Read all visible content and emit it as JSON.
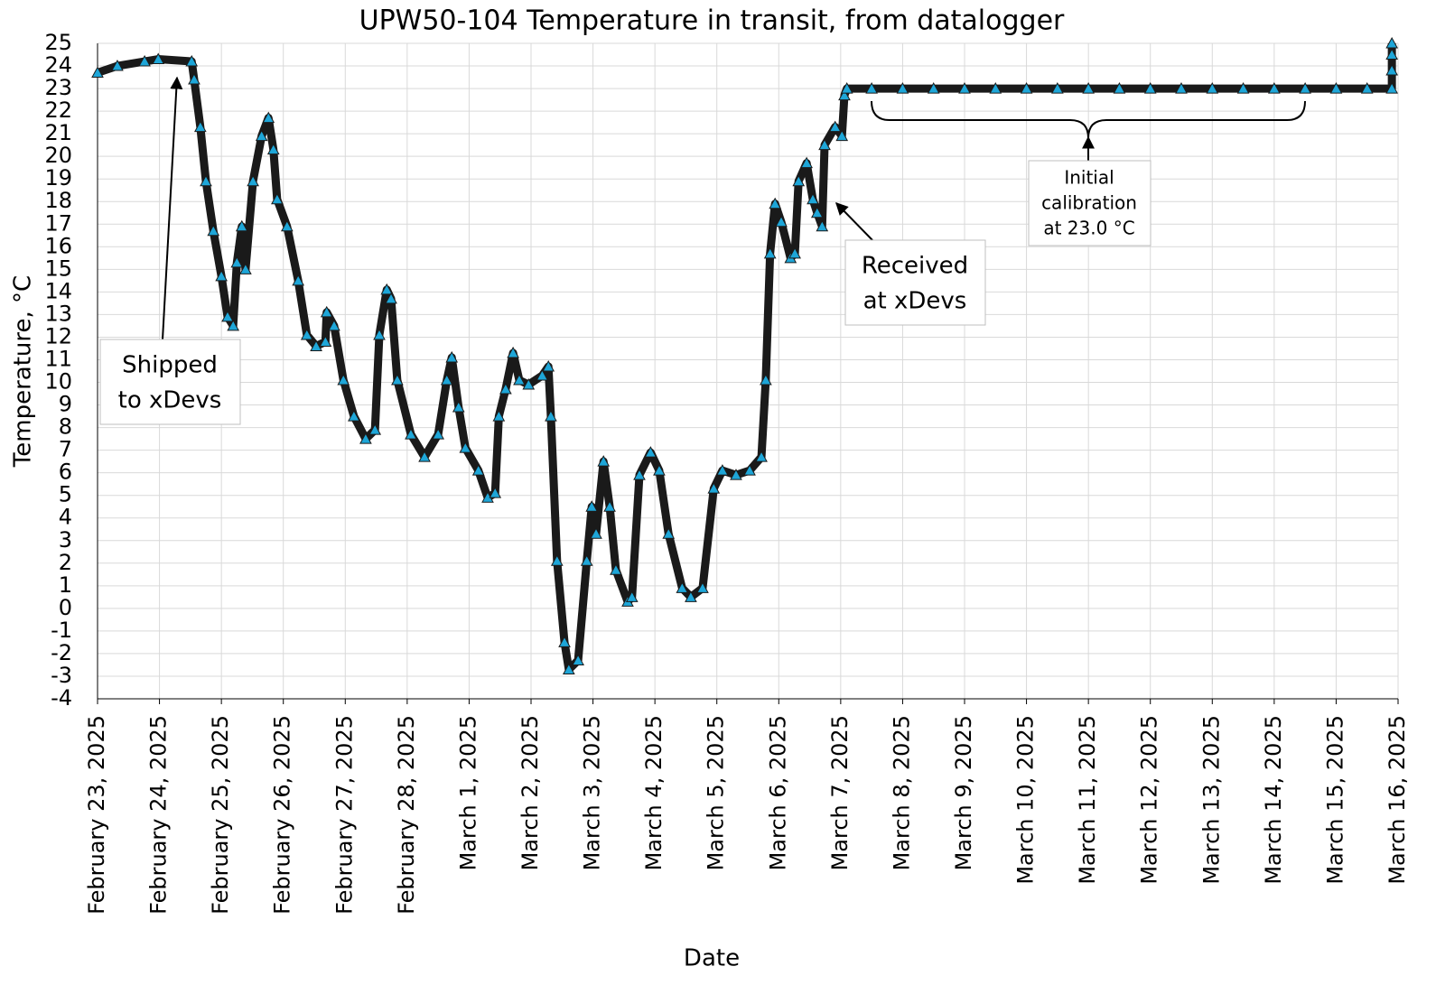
{
  "chart_data": {
    "type": "scatter",
    "title": "UPW50-104 Temperature in transit, from datalogger",
    "x_label": "Date",
    "y_label": "Temperature, °C",
    "grid": true,
    "xlim": [
      0,
      21
    ],
    "ylim": [
      -4,
      25
    ],
    "xticks": [
      {
        "value": 0,
        "label": "February 23, 2025"
      },
      {
        "value": 1,
        "label": "February 24, 2025"
      },
      {
        "value": 2,
        "label": "February 25, 2025"
      },
      {
        "value": 3,
        "label": "February 26, 2025"
      },
      {
        "value": 4,
        "label": "February 27, 2025"
      },
      {
        "value": 5,
        "label": "February 28, 2025"
      },
      {
        "value": 6,
        "label": "March 1, 2025"
      },
      {
        "value": 7,
        "label": "March 2, 2025"
      },
      {
        "value": 8,
        "label": "March 3, 2025"
      },
      {
        "value": 9,
        "label": "March 4, 2025"
      },
      {
        "value": 10,
        "label": "March 5, 2025"
      },
      {
        "value": 11,
        "label": "March 6, 2025"
      },
      {
        "value": 12,
        "label": "March 7, 2025"
      },
      {
        "value": 13,
        "label": "March 8, 2025"
      },
      {
        "value": 14,
        "label": "March 9, 2025"
      },
      {
        "value": 15,
        "label": "March 10, 2025"
      },
      {
        "value": 16,
        "label": "March 11, 2025"
      },
      {
        "value": 17,
        "label": "March 12, 2025"
      },
      {
        "value": 18,
        "label": "March 13, 2025"
      },
      {
        "value": 19,
        "label": "March 14, 2025"
      },
      {
        "value": 20,
        "label": "March 15, 2025"
      },
      {
        "value": 21,
        "label": "March 16, 2025"
      }
    ],
    "yticks": [
      -4,
      -3,
      -2,
      -1,
      0,
      1,
      2,
      3,
      4,
      5,
      6,
      7,
      8,
      9,
      10,
      11,
      12,
      13,
      14,
      15,
      16,
      17,
      18,
      19,
      20,
      21,
      22,
      23,
      24,
      25
    ],
    "series": [
      {
        "color": "#1ea6d8",
        "edge_color": "#1a1a1a",
        "x": [
          0,
          0.32,
          0.76,
          0.98,
          1.52,
          1.56,
          1.66,
          1.75,
          1.87,
          2.0,
          2.1,
          2.19,
          2.25,
          2.33,
          2.39,
          2.51,
          2.65,
          2.76,
          2.84,
          2.9,
          3.06,
          3.24,
          3.38,
          3.53,
          3.68,
          3.7,
          3.82,
          3.97,
          4.14,
          4.33,
          4.48,
          4.55,
          4.67,
          4.74,
          4.84,
          5.06,
          5.28,
          5.5,
          5.64,
          5.72,
          5.83,
          5.94,
          6.15,
          6.3,
          6.42,
          6.48,
          6.59,
          6.71,
          6.81,
          6.96,
          7.18,
          7.28,
          7.32,
          7.42,
          7.54,
          7.61,
          7.76,
          7.9,
          7.98,
          8.05,
          8.17,
          8.27,
          8.37,
          8.56,
          8.63,
          8.75,
          8.93,
          9.07,
          9.22,
          9.44,
          9.58,
          9.77,
          9.95,
          10.09,
          10.31,
          10.53,
          10.72,
          10.79,
          10.86,
          10.94,
          11.04,
          11.19,
          11.26,
          11.32,
          11.45,
          11.55,
          11.62,
          11.7,
          11.74,
          11.91,
          12.02,
          12.06,
          12.1,
          12.5,
          13,
          13.5,
          14,
          14.5,
          15,
          15.5,
          16,
          16.5,
          17,
          17.5,
          18,
          18.5,
          19,
          19.5,
          20,
          20.5,
          20.9,
          20.9,
          20.9,
          20.9
        ],
        "values": [
          23.7,
          24.0,
          24.2,
          24.3,
          24.2,
          23.4,
          21.3,
          18.9,
          16.7,
          14.7,
          12.9,
          12.5,
          15.3,
          16.9,
          15.0,
          18.9,
          20.9,
          21.7,
          20.3,
          18.1,
          16.9,
          14.5,
          12.1,
          11.6,
          11.8,
          13.1,
          12.5,
          10.1,
          8.5,
          7.5,
          7.9,
          12.1,
          14.1,
          13.7,
          10.1,
          7.7,
          6.7,
          7.7,
          10.1,
          11.1,
          8.9,
          7.1,
          6.1,
          4.9,
          5.1,
          8.5,
          9.7,
          11.3,
          10.1,
          9.9,
          10.3,
          10.7,
          8.5,
          2.1,
          -1.5,
          -2.7,
          -2.3,
          2.1,
          4.5,
          3.3,
          6.5,
          4.5,
          1.7,
          0.3,
          0.5,
          5.9,
          6.9,
          6.1,
          3.3,
          0.9,
          0.5,
          0.9,
          5.3,
          6.1,
          5.9,
          6.1,
          6.7,
          10.1,
          15.7,
          17.9,
          17.1,
          15.5,
          15.7,
          18.9,
          19.7,
          18.1,
          17.5,
          16.9,
          20.5,
          21.3,
          20.9,
          22.7,
          23.0,
          23.0,
          23.0,
          23.0,
          23.0,
          23.0,
          23.0,
          23.0,
          23.0,
          23.0,
          23.0,
          23.0,
          23.0,
          23.0,
          23.0,
          23.0,
          23.0,
          23.0,
          23.0,
          23.8,
          24.5,
          25.0
        ]
      }
    ],
    "annotations": [
      {
        "lines": [
          "Shipped",
          "to xDevs"
        ]
      },
      {
        "lines": [
          "Received",
          "at xDevs"
        ]
      },
      {
        "lines": [
          "Initial",
          "calibration",
          "at 23.0 °C"
        ]
      }
    ]
  }
}
